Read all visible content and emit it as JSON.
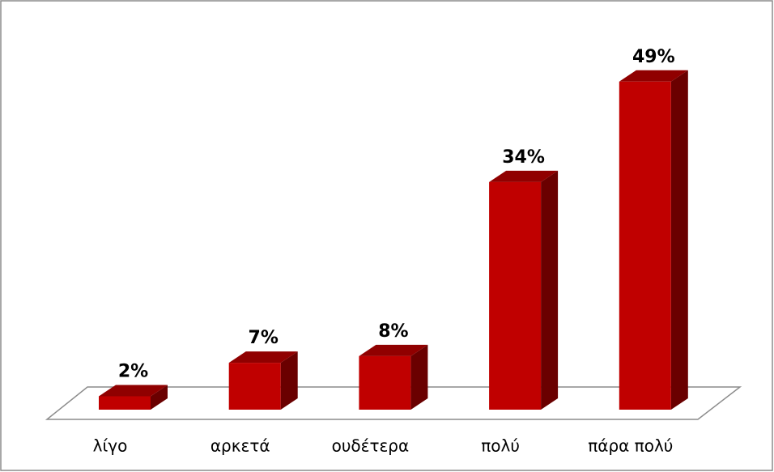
{
  "chart_data": {
    "type": "bar3d",
    "categories": [
      "λίγο",
      "αρκετά",
      "ουδέτερα",
      "πολύ",
      "πάρα πολύ"
    ],
    "values": [
      2,
      7,
      8,
      34,
      49
    ],
    "value_labels": [
      "2%",
      "7%",
      "8%",
      "34%",
      "49%"
    ],
    "color": "#c00000"
  }
}
